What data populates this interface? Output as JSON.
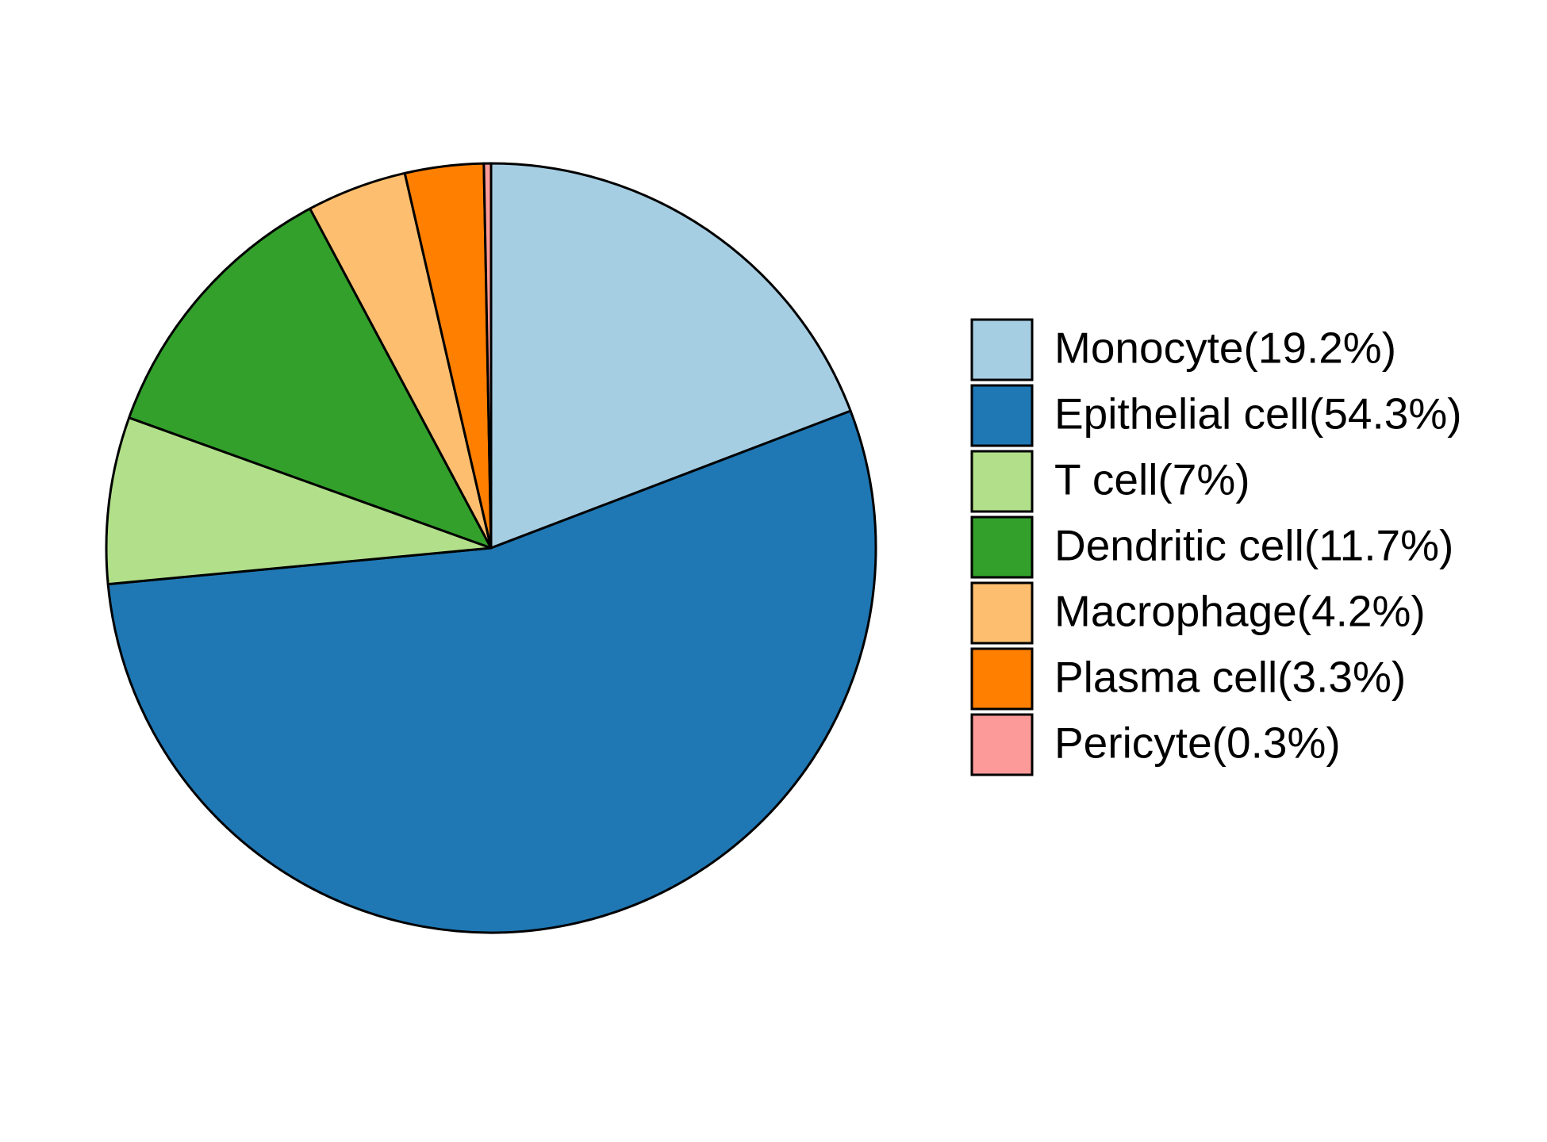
{
  "chart_data": {
    "type": "pie",
    "categories": [
      "Monocyte(19.2%)",
      "Epithelial cell(54.3%)",
      "T cell(7%)",
      "Dendritic cell(11.7%)",
      "Macrophage(4.2%)",
      "Plasma cell(3.3%)",
      "Pericyte(0.3%)"
    ],
    "values": [
      19.2,
      54.3,
      7,
      11.7,
      4.2,
      3.3,
      0.3
    ],
    "colors": [
      "#a6cee3",
      "#1f78b4",
      "#b2df8a",
      "#33a02c",
      "#fdbf6f",
      "#ff7f00",
      "#fb9a99"
    ],
    "legend": "right"
  }
}
